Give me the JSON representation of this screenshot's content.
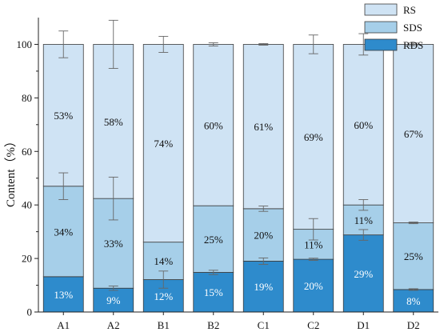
{
  "chart_data": {
    "type": "bar",
    "stacked": true,
    "categories": [
      "A1",
      "A2",
      "B1",
      "B2",
      "C1",
      "C2",
      "D1",
      "D2"
    ],
    "series": [
      {
        "name": "RDS",
        "color": "#2e8bcc",
        "values": [
          13.2,
          8.9,
          12.1,
          14.8,
          19.0,
          19.7,
          28.8,
          8.4
        ],
        "labels": [
          "13%",
          "9%",
          "12%",
          "15%",
          "19%",
          "20%",
          "29%",
          "8%"
        ],
        "errors": [
          0,
          0.8,
          3.2,
          0.8,
          1.2,
          0.4,
          2.0,
          0.3
        ],
        "label_color": "#ffffff"
      },
      {
        "name": "SDS",
        "color": "#a6cfe9",
        "values": [
          33.8,
          33.5,
          14.0,
          24.9,
          19.6,
          11.2,
          11.2,
          24.9
        ],
        "labels": [
          "34%",
          "33%",
          "14%",
          "25%",
          "20%",
          "11%",
          "11%",
          "25%"
        ],
        "errors": [
          5.0,
          8.0,
          0,
          0,
          1.0,
          4.0,
          2.0,
          0.3
        ],
        "label_color": "#111111"
      },
      {
        "name": "RS",
        "color": "#cfe3f4",
        "values": [
          53.0,
          57.6,
          73.9,
          60.3,
          61.4,
          69.1,
          60.0,
          66.7
        ],
        "labels": [
          "53%",
          "58%",
          "74%",
          "60%",
          "61%",
          "69%",
          "60%",
          "67%"
        ],
        "errors": [
          5.0,
          9.0,
          3.0,
          0.6,
          0.3,
          3.5,
          4.0,
          0.5
        ],
        "label_color": "#111111"
      }
    ],
    "ylabel": "Content（%）",
    "ylim": [
      0,
      110
    ],
    "yticks": [
      0,
      20,
      40,
      60,
      80,
      100
    ],
    "legend_position": "top-right",
    "grid": false
  }
}
